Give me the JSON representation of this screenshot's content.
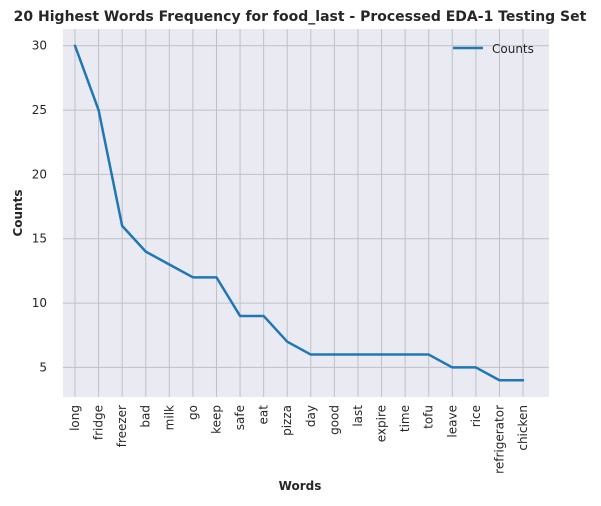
{
  "chart_data": {
    "type": "line",
    "title": "20 Highest Words Frequency for food_last - Processed EDA-1 Testing Set",
    "xlabel": "Words",
    "ylabel": "Counts",
    "categories": [
      "long",
      "fridge",
      "freezer",
      "bad",
      "milk",
      "go",
      "keep",
      "safe",
      "eat",
      "pizza",
      "day",
      "good",
      "last",
      "expire",
      "time",
      "tofu",
      "leave",
      "rice",
      "refrigerator",
      "chicken"
    ],
    "series": [
      {
        "name": "Counts",
        "values": [
          30,
          25,
          16,
          14,
          13,
          12,
          12,
          9,
          9,
          7,
          6,
          6,
          6,
          6,
          6,
          6,
          5,
          5,
          4,
          4
        ],
        "color": "#1f77b4"
      }
    ],
    "ylim": [
      2.7,
      31.3
    ],
    "yticks": [
      5,
      10,
      15,
      20,
      25,
      30
    ],
    "grid": true,
    "legend_position": "top-right",
    "background_color": "#eaeaf2",
    "grid_color": "#c0c0c8"
  }
}
